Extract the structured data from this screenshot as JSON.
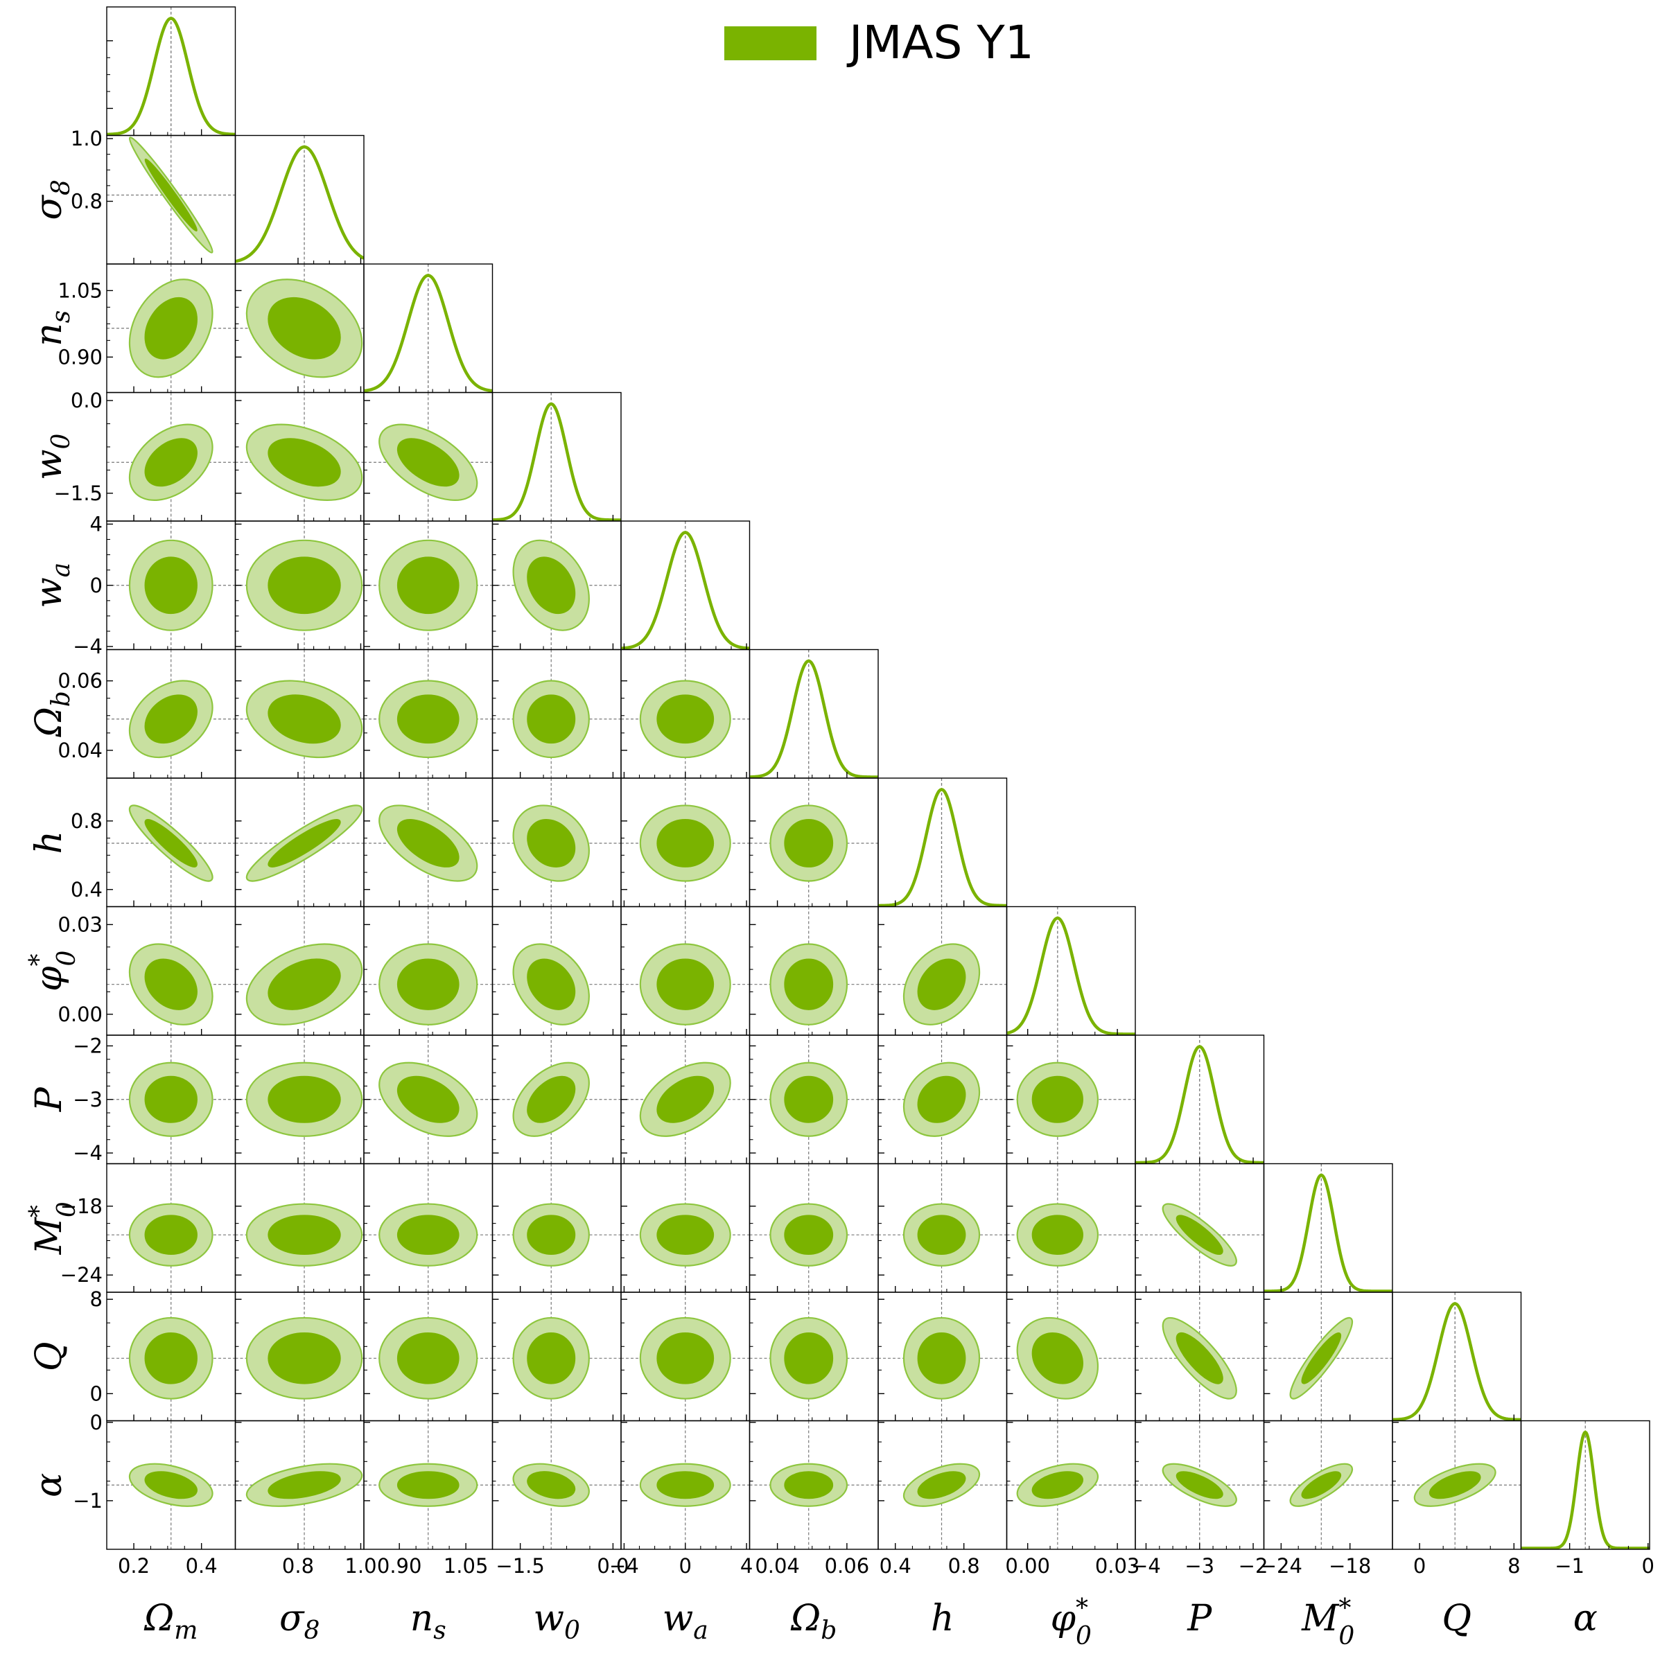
{
  "chart_data": {
    "type": "corner",
    "legend": {
      "entries": [
        {
          "label": "JMAS Y1",
          "color": "#7ab300"
        }
      ],
      "position": "top-center"
    },
    "colors": {
      "line": "#7ab300",
      "inner": "#7ab300",
      "outer": "#c8e0a0",
      "outer_edge": "#8ec63f",
      "frame": "#000000",
      "guide": "#777777"
    },
    "grid": false,
    "parameters": [
      {
        "key": "Om",
        "label": "Ωm",
        "label_main": "Ω",
        "label_sub": "m",
        "label_sup": "",
        "fiducial": 0.31,
        "sigma": 0.05,
        "range": [
          0.12,
          0.5
        ],
        "ticks": [
          0.2,
          0.4
        ],
        "tick_labels": [
          "0.2",
          "0.4"
        ]
      },
      {
        "key": "s8",
        "label": "σ8",
        "label_main": "σ",
        "label_sub": "8",
        "label_sup": "",
        "fiducial": 0.82,
        "sigma": 0.075,
        "range": [
          0.6,
          1.01
        ],
        "ticks": [
          0.8,
          1.0
        ],
        "tick_labels": [
          "0.8",
          "1.0"
        ]
      },
      {
        "key": "ns",
        "label": "ns",
        "label_main": "n",
        "label_sub": "s",
        "label_sup": "",
        "fiducial": 0.965,
        "sigma": 0.045,
        "range": [
          0.82,
          1.11
        ],
        "ticks": [
          0.9,
          1.05
        ],
        "tick_labels": [
          "0.90",
          "1.05"
        ]
      },
      {
        "key": "w0",
        "label": "w0",
        "label_main": "w",
        "label_sub": "0",
        "label_sup": "",
        "fiducial": -1.0,
        "sigma": 0.25,
        "range": [
          -1.95,
          0.13
        ],
        "ticks": [
          -1.5,
          0.0
        ],
        "tick_labels": [
          "−1.5",
          "0.0"
        ]
      },
      {
        "key": "wa",
        "label": "wa",
        "label_main": "w",
        "label_sub": "a",
        "label_sup": "",
        "fiducial": 0.0,
        "sigma": 1.2,
        "range": [
          -4.2,
          4.2
        ],
        "ticks": [
          -4,
          0,
          4
        ],
        "tick_labels": [
          "−4",
          "0",
          "4"
        ]
      },
      {
        "key": "Ob",
        "label": "Ωb",
        "label_main": "Ω",
        "label_sub": "b",
        "label_sup": "",
        "fiducial": 0.049,
        "sigma": 0.0045,
        "range": [
          0.032,
          0.069
        ],
        "ticks": [
          0.04,
          0.06
        ],
        "tick_labels": [
          "0.04",
          "0.06"
        ]
      },
      {
        "key": "h",
        "label": "h",
        "label_main": "h",
        "label_sub": "",
        "label_sup": "",
        "fiducial": 0.67,
        "sigma": 0.09,
        "range": [
          0.3,
          1.05
        ],
        "ticks": [
          0.4,
          0.8
        ],
        "tick_labels": [
          "0.4",
          "0.8"
        ]
      },
      {
        "key": "phi",
        "label": "φ0*",
        "label_main": "φ",
        "label_sub": "0",
        "label_sup": "*",
        "fiducial": 0.01,
        "sigma": 0.0055,
        "range": [
          -0.007,
          0.036
        ],
        "ticks": [
          0.0,
          0.03
        ],
        "tick_labels": [
          "0.00",
          "0.03"
        ]
      },
      {
        "key": "P",
        "label": "P",
        "label_main": "P",
        "label_sub": "",
        "label_sup": "",
        "fiducial": -3.0,
        "sigma": 0.28,
        "range": [
          -4.2,
          -1.8
        ],
        "ticks": [
          -4,
          -3,
          -2
        ],
        "tick_labels": [
          "−4",
          "−3",
          "−2"
        ]
      },
      {
        "key": "M0",
        "label": "M0*",
        "label_main": "M",
        "label_sub": "0",
        "label_sup": "*",
        "fiducial": -20.5,
        "sigma": 1.1,
        "range": [
          -25.5,
          -14.3
        ],
        "ticks": [
          -24,
          -18
        ],
        "tick_labels": [
          "−24",
          "−18"
        ]
      },
      {
        "key": "Q",
        "label": "Q",
        "label_main": "Q",
        "label_sub": "",
        "label_sup": "",
        "fiducial": 3.0,
        "sigma": 1.4,
        "range": [
          -2.3,
          8.6
        ],
        "ticks": [
          0,
          8
        ],
        "tick_labels": [
          "0",
          "8"
        ]
      },
      {
        "key": "alpha",
        "label": "α",
        "label_main": "α",
        "label_sub": "",
        "label_sup": "",
        "fiducial": -0.8,
        "sigma": 0.11,
        "range": [
          -1.62,
          0.02
        ],
        "ticks": [
          -1,
          0
        ],
        "tick_labels": [
          "−1",
          "0"
        ]
      }
    ],
    "correlations": [
      {
        "pair": [
          "s8",
          "Om"
        ],
        "rho": -0.98
      },
      {
        "pair": [
          "ns",
          "Om"
        ],
        "rho": 0.3
      },
      {
        "pair": [
          "ns",
          "s8"
        ],
        "rho": -0.3
      },
      {
        "pair": [
          "w0",
          "Om"
        ],
        "rho": 0.4
      },
      {
        "pair": [
          "w0",
          "s8"
        ],
        "rho": -0.4
      },
      {
        "pair": [
          "w0",
          "ns"
        ],
        "rho": -0.55
      },
      {
        "pair": [
          "wa",
          "w0"
        ],
        "rho": -0.3
      },
      {
        "pair": [
          "Ob",
          "Om"
        ],
        "rho": 0.3
      },
      {
        "pair": [
          "Ob",
          "s8"
        ],
        "rho": -0.25
      },
      {
        "pair": [
          "h",
          "Om"
        ],
        "rho": -0.9
      },
      {
        "pair": [
          "h",
          "s8"
        ],
        "rho": 0.9
      },
      {
        "pair": [
          "h",
          "ns"
        ],
        "rho": -0.6
      },
      {
        "pair": [
          "h",
          "w0"
        ],
        "rho": -0.2
      },
      {
        "pair": [
          "phi",
          "Om"
        ],
        "rho": -0.3
      },
      {
        "pair": [
          "phi",
          "s8"
        ],
        "rho": 0.35
      },
      {
        "pair": [
          "phi",
          "w0"
        ],
        "rho": -0.3
      },
      {
        "pair": [
          "phi",
          "h"
        ],
        "rho": 0.3
      },
      {
        "pair": [
          "P",
          "ns"
        ],
        "rho": -0.4
      },
      {
        "pair": [
          "P",
          "w0"
        ],
        "rho": 0.45
      },
      {
        "pair": [
          "P",
          "wa"
        ],
        "rho": 0.45
      },
      {
        "pair": [
          "P",
          "h"
        ],
        "rho": 0.2
      },
      {
        "pair": [
          "M0",
          "P"
        ],
        "rho": -0.85
      },
      {
        "pair": [
          "Q",
          "P"
        ],
        "rho": -0.8
      },
      {
        "pair": [
          "Q",
          "M0"
        ],
        "rho": 0.9
      },
      {
        "pair": [
          "Q",
          "phi"
        ],
        "rho": -0.2
      },
      {
        "pair": [
          "alpha",
          "Om"
        ],
        "rho": -0.4
      },
      {
        "pair": [
          "alpha",
          "s8"
        ],
        "rho": 0.45
      },
      {
        "pair": [
          "alpha",
          "w0"
        ],
        "rho": -0.3
      },
      {
        "pair": [
          "alpha",
          "h"
        ],
        "rho": 0.5
      },
      {
        "pair": [
          "alpha",
          "phi"
        ],
        "rho": 0.4
      },
      {
        "pair": [
          "alpha",
          "P"
        ],
        "rho": -0.7
      },
      {
        "pair": [
          "alpha",
          "M0"
        ],
        "rho": 0.75
      },
      {
        "pair": [
          "alpha",
          "Q"
        ],
        "rho": 0.6
      }
    ]
  }
}
